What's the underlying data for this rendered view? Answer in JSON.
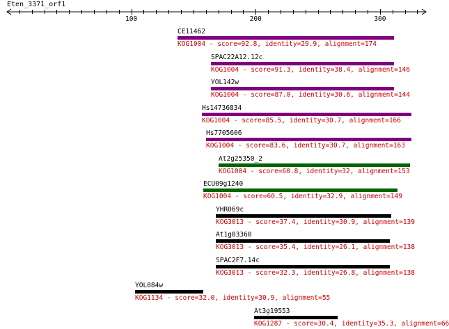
{
  "title": "Eten_3371_orf1",
  "axis": {
    "min": 0,
    "max": 337,
    "ticks": [
      100,
      200,
      300
    ]
  },
  "colors": {
    "axis": "#000000",
    "name_text": "#000000",
    "desc_text": "#cc0000"
  },
  "hits": [
    {
      "name": "CE11462",
      "desc": "KOG1004 - score=92.8, identity=29.9, alignment=174",
      "start": 137,
      "end": 311,
      "color": "#800080"
    },
    {
      "name": "SPAC22A12.12c",
      "desc": "KOG1004 - score=91.3, identity=38.4, alignment=146",
      "start": 164,
      "end": 311,
      "color": "#800080"
    },
    {
      "name": "YOL142w",
      "desc": "KOG1004 - score=87.0, identity=30.6, alignment=144",
      "start": 164,
      "end": 311,
      "color": "#800080"
    },
    {
      "name": "Hs14736834",
      "desc": "KOG1004 - score=85.5, identity=30.7, alignment=166",
      "start": 157,
      "end": 325,
      "color": "#800080"
    },
    {
      "name": "Hs7705606",
      "desc": "KOG1004 - score=83.6, identity=30.7, alignment=163",
      "start": 160,
      "end": 325,
      "color": "#800080"
    },
    {
      "name": "At2g25350_2",
      "desc": "KOG1004 - score=60.8, identity=32, alignment=153",
      "start": 170,
      "end": 324,
      "color": "#006400"
    },
    {
      "name": "ECU09g1240",
      "desc": "KOG1004 - score=60.5, identity=32.9, alignment=149",
      "start": 158,
      "end": 314,
      "color": "#006400"
    },
    {
      "name": "YHR069c",
      "desc": "KOG3013 - score=37.4, identity=30.9, alignment=139",
      "start": 168,
      "end": 309,
      "color": "#000000"
    },
    {
      "name": "At1g03360",
      "desc": "KOG3013 - score=35.4, identity=26.1, alignment=138",
      "start": 168,
      "end": 308,
      "color": "#000000"
    },
    {
      "name": "SPAC2F7.14c",
      "desc": "KOG3013 - score=32.3, identity=26.8, alignment=138",
      "start": 168,
      "end": 308,
      "color": "#000000"
    },
    {
      "name": "YOL084w",
      "desc": "KOG1134 - score=32.0, identity=30.9, alignment=55",
      "start": 103,
      "end": 158,
      "color": "#000000"
    },
    {
      "name": "At3g19553",
      "desc": "KOG1287 - score=30.4, identity=35.3, alignment=66",
      "start": 199,
      "end": 266,
      "color": "#000000"
    }
  ]
}
